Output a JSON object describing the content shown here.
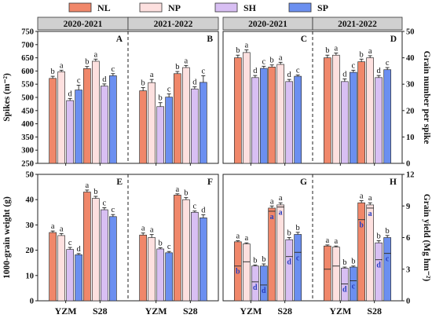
{
  "legend": [
    {
      "name": "NL",
      "color": "#f0876a"
    },
    {
      "name": "NP",
      "color": "#fde0df"
    },
    {
      "name": "SH",
      "color": "#d8bff3"
    },
    {
      "name": "SP",
      "color": "#6b8ff0"
    }
  ],
  "seasons": [
    "2020-2021",
    "2021-2022"
  ],
  "cultivars": [
    "YZM",
    "S28"
  ],
  "chart_data": [
    {
      "id": "spikes",
      "letter": "A/B",
      "type": "bar",
      "ylabel": "Spikes (m⁻²)",
      "ylim": [
        250,
        750
      ],
      "yticks": [
        250,
        300,
        350,
        400,
        450,
        500,
        550,
        600,
        650,
        700,
        750
      ],
      "panels": [
        {
          "letter": "A",
          "season": "2020-2021",
          "groups": [
            {
              "cultivar": "YZM",
              "values": [
                572,
                597,
                488,
                528
              ],
              "errors": [
                8,
                6,
                8,
                18
              ],
              "labels": [
                "b",
                "a",
                "d",
                "c"
              ]
            },
            {
              "cultivar": "S28",
              "values": [
                609,
                637,
                543,
                582
              ],
              "errors": [
                8,
                8,
                8,
                8
              ],
              "labels": [
                "b",
                "a",
                "d",
                "c"
              ]
            }
          ]
        },
        {
          "letter": "B",
          "season": "2021-2022",
          "groups": [
            {
              "cultivar": "YZM",
              "values": [
                525,
                556,
                465,
                501
              ],
              "errors": [
                12,
                12,
                15,
                12
              ],
              "labels": [
                "b",
                "a",
                "b",
                "c"
              ]
            },
            {
              "cultivar": "S28",
              "values": [
                590,
                613,
                532,
                557
              ],
              "errors": [
                8,
                8,
                8,
                25
              ],
              "labels": [
                "b",
                "a",
                "d",
                "c"
              ]
            }
          ]
        }
      ]
    },
    {
      "id": "grain-number",
      "type": "bar",
      "ylabel": "Grain number per spike",
      "ylim": [
        0,
        50
      ],
      "yticks": [
        0,
        10,
        20,
        30,
        40,
        50
      ],
      "panels": [
        {
          "letter": "C",
          "season": "2020-2021",
          "groups": [
            {
              "cultivar": "YZM",
              "values": [
                40,
                42,
                32.5,
                36
              ],
              "errors": [
                1,
                1,
                0.8,
                0.8
              ],
              "labels": [
                "b",
                "a",
                "d",
                "c"
              ]
            },
            {
              "cultivar": "S28",
              "values": [
                36.5,
                37.5,
                31,
                33
              ],
              "errors": [
                0.8,
                0.8,
                0.8,
                0.5
              ],
              "labels": [
                "b",
                "a",
                "d",
                "c"
              ]
            }
          ]
        },
        {
          "letter": "D",
          "season": "2021-2022",
          "groups": [
            {
              "cultivar": "YZM",
              "values": [
                40,
                41,
                31,
                34.5
              ],
              "errors": [
                1,
                0.8,
                1,
                0.8
              ],
              "labels": [
                "b",
                "a",
                "d",
                "c"
              ]
            },
            {
              "cultivar": "S28",
              "values": [
                38.5,
                40,
                32.5,
                35.5
              ],
              "errors": [
                1,
                0.8,
                0.8,
                0.8
              ],
              "labels": [
                "b",
                "a",
                "d",
                "c"
              ]
            }
          ]
        }
      ]
    },
    {
      "id": "grain-weight",
      "type": "bar",
      "ylabel": "1000-grain weight (g)",
      "ylim": [
        0,
        50
      ],
      "yticks": [
        0,
        10,
        20,
        30,
        40,
        50
      ],
      "panels": [
        {
          "letter": "E",
          "season": "2020-2021",
          "groups": [
            {
              "cultivar": "YZM",
              "values": [
                27,
                25.8,
                20.3,
                18.2
              ],
              "errors": [
                0.6,
                0.8,
                0.8,
                0.5
              ],
              "labels": [
                "a",
                "a",
                "c",
                "d"
              ]
            },
            {
              "cultivar": "S28",
              "values": [
                43,
                40.5,
                36,
                33.3
              ],
              "errors": [
                0.8,
                0.8,
                0.8,
                0.8
              ],
              "labels": [
                "a",
                "b",
                "c",
                "c"
              ]
            }
          ]
        },
        {
          "letter": "F",
          "season": "2021-2022",
          "groups": [
            {
              "cultivar": "YZM",
              "values": [
                26,
                25,
                20.5,
                19
              ],
              "errors": [
                0.8,
                1.2,
                0.5,
                0.5
              ],
              "labels": [
                "a",
                "a",
                "b",
                "c"
              ]
            },
            {
              "cultivar": "S28",
              "values": [
                41.8,
                40,
                35,
                32.8
              ],
              "errors": [
                0.5,
                0.8,
                0.5,
                1.2
              ],
              "labels": [
                "a",
                "b",
                "c",
                "d"
              ]
            }
          ]
        }
      ]
    },
    {
      "id": "grain-yield",
      "type": "bar",
      "ylabel": "Grain yield (Mg hm⁻²)",
      "ylim": [
        0,
        12
      ],
      "yticks": [
        0,
        3,
        6,
        9,
        12
      ],
      "panels": [
        {
          "letter": "G",
          "season": "2020-2021",
          "groups": [
            {
              "cultivar": "YZM",
              "values": [
                5.6,
                5.4,
                3.3,
                3.3
              ],
              "inner": [
                3.3,
                3.7,
                1.8,
                1.5
              ],
              "errors": [
                0.1,
                0.1,
                0.1,
                0.2
              ],
              "labels": [
                "a",
                "a",
                "b",
                "b"
              ],
              "inner_labels": [
                "b",
                "",
                "d",
                "d"
              ]
            },
            {
              "cultivar": "S28",
              "values": [
                8.8,
                9.1,
                5.8,
                6.3
              ],
              "inner": [
                8.5,
                8.9,
                4.2,
                4.6
              ],
              "errors": [
                0.2,
                0.2,
                0.2,
                0.2
              ],
              "labels": [
                "a",
                "a",
                "b",
                "b"
              ],
              "inner_labels": [
                "a",
                "a",
                "d",
                "c"
              ]
            }
          ]
        },
        {
          "letter": "H",
          "season": "2021-2022",
          "groups": [
            {
              "cultivar": "YZM",
              "values": [
                5.2,
                5.1,
                3.1,
                3.2
              ],
              "inner": [
                3.0,
                3.3,
                1.6,
                1.9
              ],
              "errors": [
                0.1,
                0.1,
                0.1,
                0.1
              ],
              "labels": [
                "a",
                "a",
                "b",
                "b"
              ],
              "inner_labels": [
                "",
                "",
                "d",
                "c"
              ]
            },
            {
              "cultivar": "S28",
              "values": [
                9.3,
                9.1,
                5.5,
                6.0
              ],
              "inner": [
                7.7,
                8.8,
                3.9,
                4.5
              ],
              "errors": [
                0.2,
                0.2,
                0.2,
                0.2
              ],
              "labels": [
                "a",
                "a",
                "b",
                "b"
              ],
              "inner_labels": [
                "b",
                "a",
                "d",
                "c"
              ]
            }
          ]
        }
      ]
    }
  ]
}
